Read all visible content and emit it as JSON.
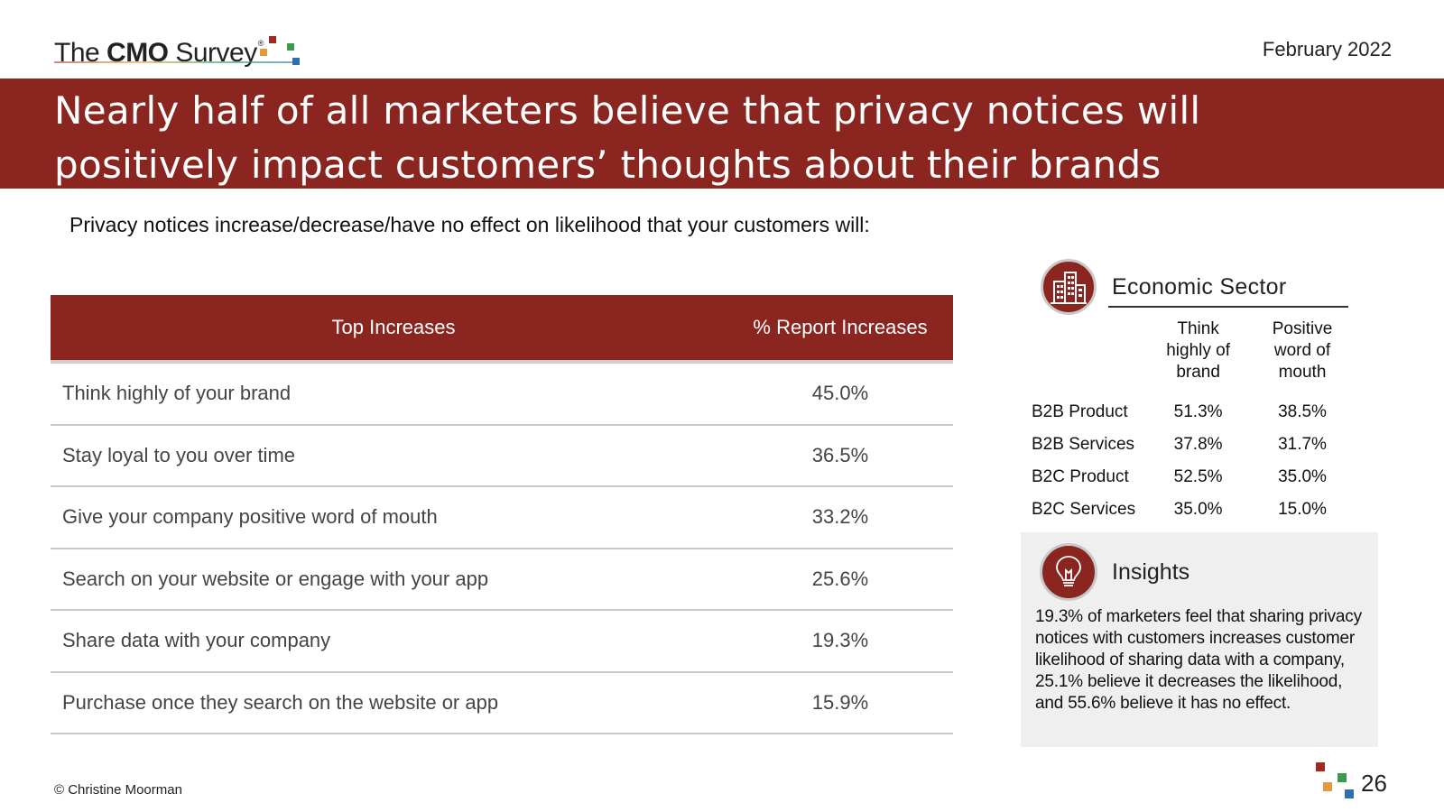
{
  "header": {
    "logo_prefix": "The ",
    "logo_bold": "CMO",
    "logo_suffix": " Survey",
    "logo_reg": "®",
    "date": "February 2022"
  },
  "banner": {
    "title": "Nearly half of all marketers believe that privacy notices will positively impact customers’ thoughts about their brands"
  },
  "subtitle": "Privacy notices increase/decrease/have no effect on likelihood that your customers will:",
  "main_table": {
    "headers": [
      "Top Increases",
      "% Report Increases"
    ],
    "rows": [
      {
        "label": "Think highly of your brand",
        "value": "45.0%"
      },
      {
        "label": "Stay loyal to you over time",
        "value": "36.5%"
      },
      {
        "label": "Give your company positive word of mouth",
        "value": "33.2%"
      },
      {
        "label": "Search on your website or engage with your app",
        "value": "25.6%"
      },
      {
        "label": "Share data with your company",
        "value": "19.3%"
      },
      {
        "label": "Purchase once they search on the website or app",
        "value": "15.9%"
      }
    ]
  },
  "sector": {
    "title": "Economic Sector",
    "icon": "buildings-icon",
    "col_a": [
      "Think",
      "highly of",
      "brand"
    ],
    "col_b": [
      "Positive",
      "word of",
      "mouth"
    ],
    "rows": [
      {
        "label": "B2B Product",
        "a": "51.3%",
        "b": "38.5%"
      },
      {
        "label": "B2B Services",
        "a": "37.8%",
        "b": "31.7%"
      },
      {
        "label": "B2C Product",
        "a": "52.5%",
        "b": "35.0%"
      },
      {
        "label": "B2C Services",
        "a": "35.0%",
        "b": "15.0%"
      }
    ]
  },
  "insights": {
    "title": "Insights",
    "icon": "lightbulb-icon",
    "body": "19.3% of marketers feel that sharing privacy notices with customers increases customer likelihood of sharing data with a company, 25.1% believe it decreases the likelihood, and 55.6% believe it has no effect."
  },
  "footer": {
    "copyright": "© Christine Moorman",
    "page_number": "26"
  },
  "colors": {
    "brand_red": "#8b2520",
    "square_red": "#a02a22",
    "square_orange": "#e29a3c",
    "square_green": "#3a9a50",
    "square_blue": "#2f6fb0"
  }
}
